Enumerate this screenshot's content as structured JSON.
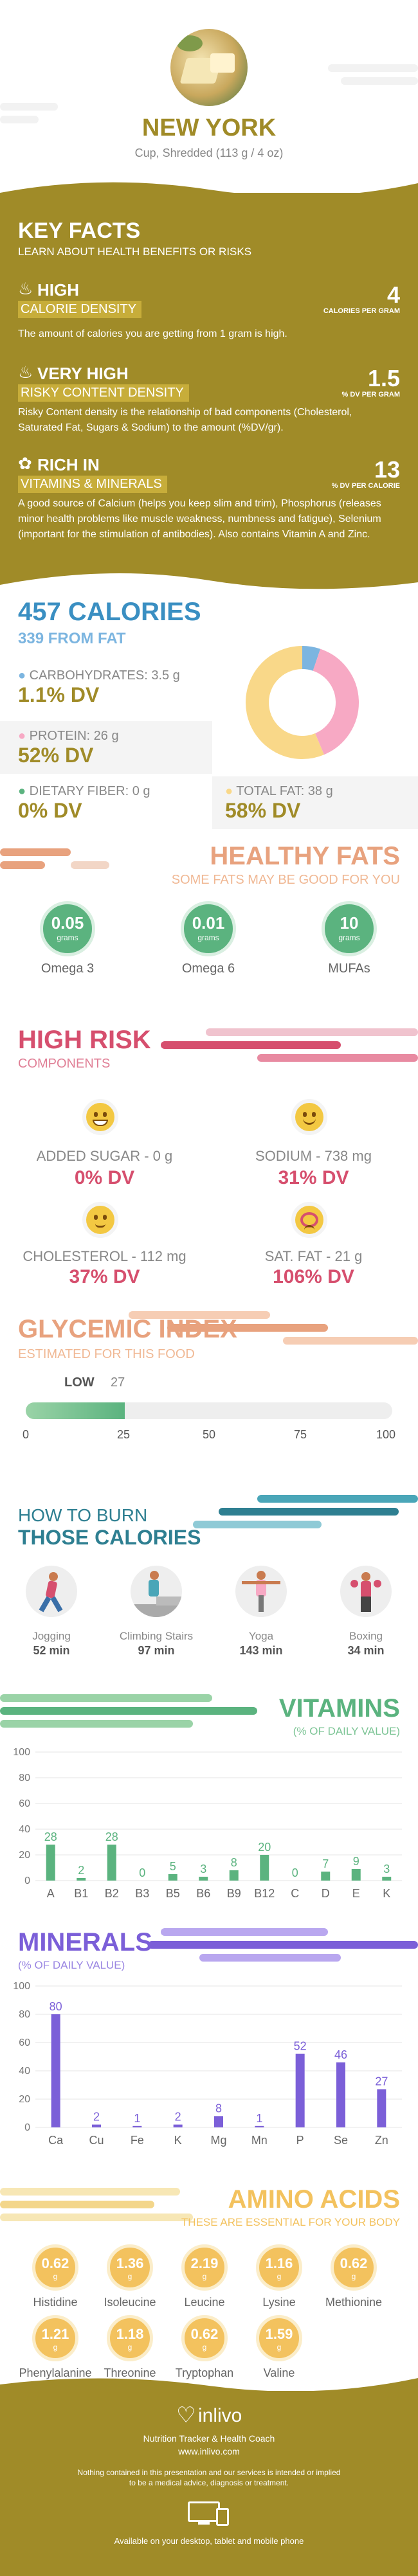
{
  "header": {
    "title": "NEW YORK",
    "subtitle": "Cup, Shredded (113 g / 4 oz)"
  },
  "key_facts": {
    "title": "KEY FACTS",
    "subtitle": "LEARN ABOUT HEALTH BENEFITS OR RISKS",
    "items": [
      {
        "level": "HIGH",
        "label": "CALORIE DENSITY",
        "value": "4",
        "unit": "CALORIES PER GRAM",
        "desc": "The amount of calories you are getting from 1 gram is high."
      },
      {
        "level": "VERY HIGH",
        "label": "RISKY CONTENT DENSITY",
        "value": "1.5",
        "unit": "% DV PER GRAM",
        "desc": "Risky Content density is the relationship of bad components (Cholesterol, Saturated Fat, Sugars & Sodium) to the amount (%DV/gr)."
      },
      {
        "level": "RICH IN",
        "label": "VITAMINS & MINERALS",
        "value": "13",
        "unit": "% DV PER CALORIE",
        "desc": "A good source of Calcium (helps you keep slim and trim), Phosphorus (releases minor health problems like muscle weakness, numbness and fatigue), Selenium (important for the stimulation of antibodies). Also contains Vitamin A and Zinc."
      }
    ]
  },
  "calories": {
    "title": "457 CALORIES",
    "from_fat": "339 FROM FAT",
    "carbs_label": "CARBOHYDRATES: 3.5 g",
    "carbs_dv": "1.1% DV",
    "protein_label": "PROTEIN: 26 g",
    "protein_dv": "52% DV",
    "fiber_label": "DIETARY FIBER: 0 g",
    "fiber_dv": "0% DV",
    "fat_label": "TOTAL FAT: 38 g",
    "fat_dv": "58% DV",
    "donut": [
      {
        "name": "CARBOHYDRATES",
        "value": 3.5,
        "color": "#7cb5e0"
      },
      {
        "name": "PROTEIN",
        "value": 26,
        "color": "#f7a9c4"
      },
      {
        "name": "TOTAL FAT",
        "value": 38,
        "color": "#f9d889"
      }
    ]
  },
  "healthy_fats": {
    "title": "HEALTHY FATS",
    "subtitle": "SOME FATS MAY BE GOOD FOR YOU",
    "items": [
      {
        "value": "0.05",
        "unit": "grams",
        "name": "Omega 3"
      },
      {
        "value": "0.01",
        "unit": "grams",
        "name": "Omega 6"
      },
      {
        "value": "10",
        "unit": "grams",
        "name": "MUFAs"
      }
    ]
  },
  "high_risk": {
    "title": "HIGH RISK",
    "subtitle": "COMPONENTS",
    "items": [
      {
        "label": "ADDED SUGAR - 0 g",
        "dv": "0% DV"
      },
      {
        "label": "SODIUM - 738 mg",
        "dv": "31% DV"
      },
      {
        "label": "CHOLESTEROL - 112 mg",
        "dv": "37% DV"
      },
      {
        "label": "SAT. FAT - 21 g",
        "dv": "106% DV"
      }
    ]
  },
  "glycemic": {
    "title": "GLYCEMIC INDEX",
    "subtitle": "ESTIMATED FOR THIS FOOD",
    "level": "LOW",
    "value": "27",
    "value_num": 27,
    "ticks": [
      "0",
      "25",
      "50",
      "75",
      "100"
    ]
  },
  "burn": {
    "title1": "HOW TO BURN",
    "title2": "THOSE CALORIES",
    "items": [
      {
        "activity": "Jogging",
        "time": "52 min"
      },
      {
        "activity": "Climbing Stairs",
        "time": "97 min"
      },
      {
        "activity": "Yoga",
        "time": "143 min"
      },
      {
        "activity": "Boxing",
        "time": "34 min"
      }
    ]
  },
  "vitamins": {
    "title": "VITAMINS",
    "subtitle": "(% OF DAILY VALUE)"
  },
  "minerals": {
    "title": "MINERALS",
    "subtitle": "(% OF DAILY VALUE)"
  },
  "chart_data": [
    {
      "type": "bar",
      "title": "VITAMINS",
      "categories": [
        "A",
        "B1",
        "B2",
        "B3",
        "B5",
        "B6",
        "B9",
        "B12",
        "C",
        "D",
        "E",
        "K"
      ],
      "values": [
        28,
        2,
        28,
        0,
        5,
        3,
        8,
        20,
        0,
        7,
        9,
        3
      ],
      "yticks": [
        "0",
        "20",
        "40",
        "60",
        "80",
        "100"
      ],
      "ylim": [
        0,
        100
      ],
      "color": "#5bb37f"
    },
    {
      "type": "bar",
      "title": "MINERALS",
      "categories": [
        "Ca",
        "Cu",
        "Fe",
        "K",
        "Mg",
        "Mn",
        "P",
        "Se",
        "Zn"
      ],
      "values": [
        80,
        2,
        1,
        2,
        8,
        1,
        52,
        46,
        27
      ],
      "yticks": [
        "0",
        "20",
        "40",
        "60",
        "80",
        "100"
      ],
      "ylim": [
        0,
        100
      ],
      "color": "#7b5fd8"
    }
  ],
  "amino": {
    "title": "AMINO ACIDS",
    "subtitle": "THESE ARE ESSENTIAL FOR YOUR BODY",
    "unit": "g",
    "items": [
      {
        "value": "0.62",
        "name": "Histidine"
      },
      {
        "value": "1.36",
        "name": "Isoleucine"
      },
      {
        "value": "2.19",
        "name": "Leucine"
      },
      {
        "value": "1.16",
        "name": "Lysine"
      },
      {
        "value": "0.62",
        "name": "Methionine"
      },
      {
        "value": "1.21",
        "name": "Phenylalanine"
      },
      {
        "value": "1.18",
        "name": "Threonine"
      },
      {
        "value": "0.62",
        "name": "Tryptophan"
      },
      {
        "value": "1.59",
        "name": "Valine"
      }
    ]
  },
  "footer": {
    "brand": "inlivo",
    "tagline": "Nutrition Tracker & Health Coach",
    "url": "www.inlivo.com",
    "disclaimer1": "Nothing contained in this presentation and our services is intended or implied",
    "disclaimer2": "to be a medical advice, diagnosis or treatment.",
    "available": "Available on your desktop, tablet and mobile phone"
  }
}
